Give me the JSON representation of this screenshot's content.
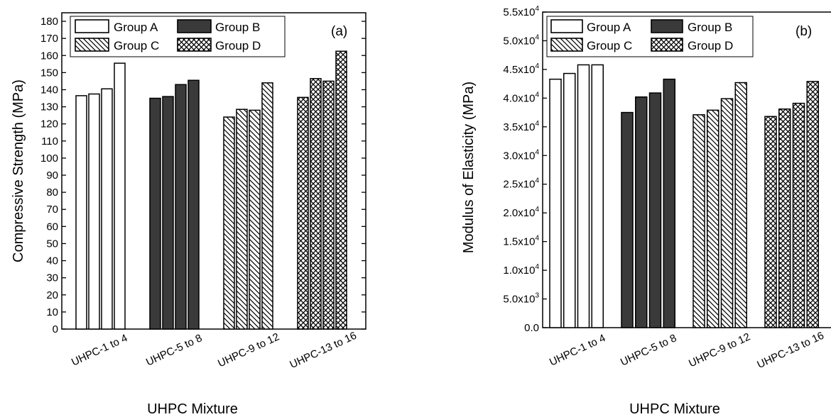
{
  "charts": [
    {
      "panel_label": "(a)",
      "xlabel": "UHPC Mixture",
      "ylabel": "Compressive Strength (MPa)",
      "categories": [
        "UHPC-1 to 4",
        "UHPC-5 to 8",
        "UHPC-9 to 12",
        "UHPC-13 to 16"
      ],
      "legend_labels": [
        "Group A",
        "Group B",
        "Group C",
        "Group D"
      ]
    },
    {
      "panel_label": "(b)",
      "xlabel": "UHPC Mixture",
      "ylabel": "Modulus of Elasticity (MPa)",
      "categories": [
        "UHPC-1 to 4",
        "UHPC-5 to 8",
        "UHPC-9 to 12",
        "UHPC-13 to 16"
      ],
      "legend_labels": [
        "Group A",
        "Group B",
        "Group C",
        "Group D"
      ]
    }
  ],
  "chart_data": [
    {
      "type": "bar",
      "title": "",
      "xlabel": "UHPC Mixture",
      "ylabel": "Compressive Strength (MPa)",
      "ylim": [
        0,
        185
      ],
      "yticks": [
        0,
        10,
        20,
        30,
        40,
        50,
        60,
        70,
        80,
        90,
        100,
        110,
        120,
        130,
        140,
        150,
        160,
        170,
        180
      ],
      "ytick_labels": [
        "0",
        "10",
        "20",
        "30",
        "40",
        "50",
        "60",
        "70",
        "80",
        "90",
        "100",
        "110",
        "120",
        "130",
        "140",
        "150",
        "160",
        "170",
        "180"
      ],
      "categories": [
        "UHPC-1 to 4",
        "UHPC-5 to 8",
        "UHPC-9 to 12",
        "UHPC-13 to 16"
      ],
      "series": [
        {
          "name": "Group A",
          "values": [
            136.5,
            137.5,
            140.5,
            155.5
          ]
        },
        {
          "name": "Group B",
          "values": [
            135.0,
            136.0,
            143.0,
            145.5
          ]
        },
        {
          "name": "Group C",
          "values": [
            124.0,
            128.5,
            128.0,
            144.0
          ]
        },
        {
          "name": "Group D",
          "values": [
            135.5,
            146.5,
            145.0,
            162.5
          ]
        }
      ],
      "legend": "top-left",
      "grid": false
    },
    {
      "type": "bar",
      "title": "",
      "xlabel": "UHPC Mixture",
      "ylabel": "Modulus of Elasticity (MPa)",
      "ylim": [
        0,
        55000
      ],
      "yticks": [
        0,
        5000,
        10000,
        15000,
        20000,
        25000,
        30000,
        35000,
        40000,
        45000,
        50000,
        55000
      ],
      "ytick_labels": [
        {
          "mantissa": "0.0",
          "exp": ""
        },
        {
          "mantissa": "5.0x10",
          "exp": "3"
        },
        {
          "mantissa": "1.0x10",
          "exp": "4"
        },
        {
          "mantissa": "1.5x10",
          "exp": "4"
        },
        {
          "mantissa": "2.0x10",
          "exp": "4"
        },
        {
          "mantissa": "2.5x10",
          "exp": "4"
        },
        {
          "mantissa": "3.0x10",
          "exp": "4"
        },
        {
          "mantissa": "3.5x10",
          "exp": "4"
        },
        {
          "mantissa": "4.0x10",
          "exp": "4"
        },
        {
          "mantissa": "4.5x10",
          "exp": "4"
        },
        {
          "mantissa": "5.0x10",
          "exp": "4"
        },
        {
          "mantissa": "5.5x10",
          "exp": "4"
        }
      ],
      "categories": [
        "UHPC-1 to 4",
        "UHPC-5 to 8",
        "UHPC-9 to 12",
        "UHPC-13 to 16"
      ],
      "series": [
        {
          "name": "Group A",
          "values": [
            43300,
            44300,
            45800,
            45800
          ]
        },
        {
          "name": "Group B",
          "values": [
            37500,
            40200,
            40900,
            43300
          ]
        },
        {
          "name": "Group C",
          "values": [
            37100,
            37900,
            39900,
            42700
          ]
        },
        {
          "name": "Group D",
          "values": [
            36800,
            38100,
            39100,
            42900
          ]
        }
      ],
      "legend": "top-left",
      "grid": false
    }
  ]
}
